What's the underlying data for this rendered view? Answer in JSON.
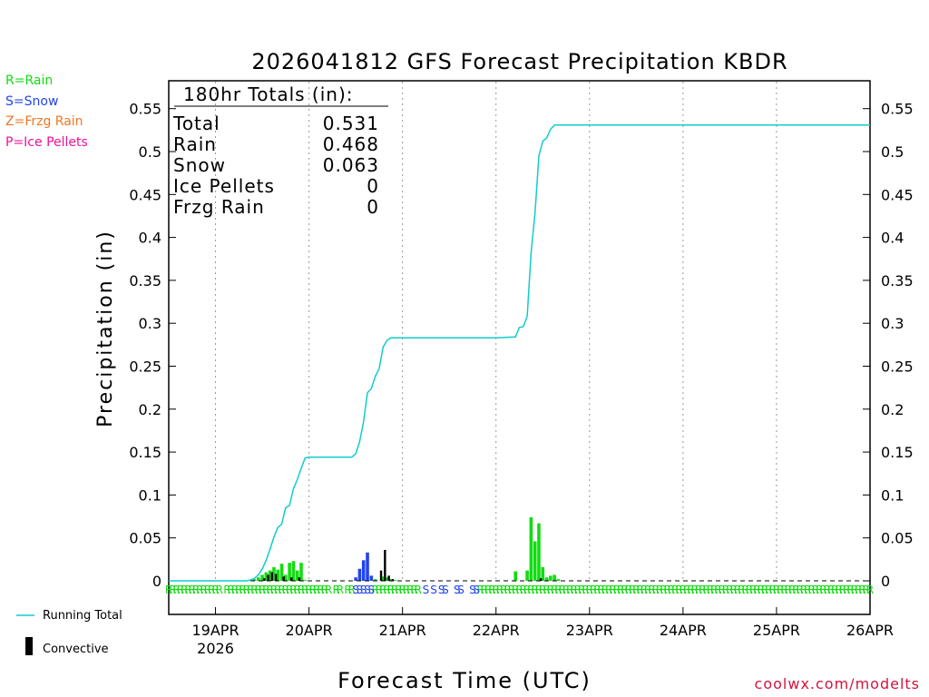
{
  "chart_data": {
    "type": "bar",
    "title": "2026041812 GFS Forecast Precipitation KBDR",
    "xlabel": "Forecast Time (UTC)",
    "ylabel": "Precipitation (in)",
    "ylim": [
      0,
      0.58
    ],
    "y_ticks": [
      0,
      0.05,
      0.1,
      0.15,
      0.2,
      0.25,
      0.3,
      0.35,
      0.4,
      0.45,
      0.5,
      0.55
    ],
    "y_tick_labels": [
      "0",
      "0.05",
      "0.1",
      "0.15",
      "0.2",
      "0.25",
      "0.3",
      "0.35",
      "0.4",
      "0.45",
      "0.5",
      "0.55"
    ],
    "x_range_hours": [
      0,
      180
    ],
    "x_ticks": [
      {
        "hour": 12,
        "label": "19APR",
        "sublabel": "2026"
      },
      {
        "hour": 36,
        "label": "20APR"
      },
      {
        "hour": 60,
        "label": "21APR"
      },
      {
        "hour": 84,
        "label": "22APR"
      },
      {
        "hour": 108,
        "label": "23APR"
      },
      {
        "hour": 132,
        "label": "24APR"
      },
      {
        "hour": 156,
        "label": "25APR"
      },
      {
        "hour": 180,
        "label": "26APR"
      }
    ],
    "grid": "vertical dotted at day boundaries",
    "totals": {
      "header": "180hr Totals (in):",
      "rows": [
        {
          "label": "Total",
          "value": "0.531"
        },
        {
          "label": "Rain",
          "value": "0.468"
        },
        {
          "label": "Snow",
          "value": "0.063"
        },
        {
          "label": "Ice Pellets",
          "value": "0"
        },
        {
          "label": "Frzg Rain",
          "value": "0"
        }
      ]
    },
    "series": [
      {
        "name": "Rain",
        "color": "#11dd11",
        "bars": [
          {
            "h": 22,
            "v": 0.002
          },
          {
            "h": 23,
            "v": 0.004
          },
          {
            "h": 24,
            "v": 0.007
          },
          {
            "h": 25,
            "v": 0.01
          },
          {
            "h": 26,
            "v": 0.012
          },
          {
            "h": 27,
            "v": 0.016
          },
          {
            "h": 28,
            "v": 0.013
          },
          {
            "h": 29,
            "v": 0.02
          },
          {
            "h": 30,
            "v": 0.007
          },
          {
            "h": 31,
            "v": 0.021
          },
          {
            "h": 32,
            "v": 0.023
          },
          {
            "h": 33,
            "v": 0.012
          },
          {
            "h": 34,
            "v": 0.021
          },
          {
            "h": 35,
            "v": 0.001
          },
          {
            "h": 53,
            "v": 0.002
          },
          {
            "h": 55,
            "v": 0.005
          },
          {
            "h": 56,
            "v": 0.004
          },
          {
            "h": 57,
            "v": 0.002
          },
          {
            "h": 58,
            "v": 0.001
          },
          {
            "h": 89,
            "v": 0.011
          },
          {
            "h": 92,
            "v": 0.012
          },
          {
            "h": 93,
            "v": 0.074
          },
          {
            "h": 94,
            "v": 0.046
          },
          {
            "h": 95,
            "v": 0.067
          },
          {
            "h": 96,
            "v": 0.016
          },
          {
            "h": 97,
            "v": 0.004
          },
          {
            "h": 98,
            "v": 0.006
          },
          {
            "h": 99,
            "v": 0.007
          },
          {
            "h": 100,
            "v": 0.002
          }
        ]
      },
      {
        "name": "Snow",
        "color": "#2244ee",
        "bars": [
          {
            "h": 48,
            "v": 0.004
          },
          {
            "h": 49,
            "v": 0.014
          },
          {
            "h": 50,
            "v": 0.024
          },
          {
            "h": 51,
            "v": 0.033
          },
          {
            "h": 52,
            "v": 0.006
          }
        ]
      },
      {
        "name": "Convective",
        "color": "#000000",
        "bars": [
          {
            "h": 24.5,
            "v": 0.003
          },
          {
            "h": 25.5,
            "v": 0.007
          },
          {
            "h": 26.5,
            "v": 0.01
          },
          {
            "h": 27.5,
            "v": 0.008
          },
          {
            "h": 29.5,
            "v": 0.005
          },
          {
            "h": 31.5,
            "v": 0.004
          },
          {
            "h": 33.5,
            "v": 0.004
          },
          {
            "h": 54.5,
            "v": 0.012
          },
          {
            "h": 55.5,
            "v": 0.036
          },
          {
            "h": 56.5,
            "v": 0.006
          },
          {
            "h": 57.5,
            "v": 0.002
          },
          {
            "h": 95.5,
            "v": 0.003
          }
        ]
      }
    ],
    "running_total": {
      "name": "Running Total",
      "color": "#11cccc",
      "points": [
        [
          0,
          0
        ],
        [
          20,
          0
        ],
        [
          21,
          0.001
        ],
        [
          22,
          0.003
        ],
        [
          23,
          0.007
        ],
        [
          24,
          0.014
        ],
        [
          25,
          0.024
        ],
        [
          26,
          0.037
        ],
        [
          27,
          0.051
        ],
        [
          28,
          0.062
        ],
        [
          29,
          0.066
        ],
        [
          30,
          0.085
        ],
        [
          31,
          0.088
        ],
        [
          32,
          0.107
        ],
        [
          33,
          0.118
        ],
        [
          34,
          0.131
        ],
        [
          35,
          0.143
        ],
        [
          36,
          0.144
        ],
        [
          47,
          0.144
        ],
        [
          48,
          0.148
        ],
        [
          49,
          0.162
        ],
        [
          50,
          0.185
        ],
        [
          51,
          0.219
        ],
        [
          52,
          0.224
        ],
        [
          53,
          0.238
        ],
        [
          54,
          0.247
        ],
        [
          55,
          0.272
        ],
        [
          56,
          0.28
        ],
        [
          57,
          0.283
        ],
        [
          84,
          0.283
        ],
        [
          89,
          0.284
        ],
        [
          90,
          0.295
        ],
        [
          91,
          0.296
        ],
        [
          92,
          0.308
        ],
        [
          93,
          0.382
        ],
        [
          94,
          0.428
        ],
        [
          95,
          0.495
        ],
        [
          96,
          0.512
        ],
        [
          97,
          0.516
        ],
        [
          98,
          0.526
        ],
        [
          99,
          0.531
        ],
        [
          180,
          0.531
        ]
      ]
    },
    "ptype_markers": {
      "rain_hours": [
        0,
        1,
        2,
        3,
        4,
        5,
        6,
        7,
        8,
        9,
        10,
        11,
        12,
        13,
        15,
        16,
        17,
        18,
        19,
        20,
        21,
        22,
        23,
        24,
        25,
        26,
        27,
        28,
        29,
        30,
        31,
        32,
        33,
        34,
        35,
        36,
        37,
        38,
        39,
        40,
        41,
        43,
        44,
        46,
        47,
        53,
        54,
        55,
        56,
        57,
        58,
        59,
        60,
        61,
        62,
        63,
        64,
        80,
        81,
        82,
        83,
        84,
        85,
        86,
        87,
        88,
        89,
        90,
        91,
        92,
        93,
        94,
        95,
        96,
        97,
        98,
        99,
        100,
        101,
        102,
        103,
        104,
        105,
        106,
        107,
        108,
        109,
        110,
        111,
        112,
        113,
        114,
        115,
        116,
        117,
        118,
        119,
        120,
        121,
        122,
        123,
        124,
        125,
        126,
        127,
        128,
        129,
        130,
        131,
        132,
        133,
        134,
        135,
        136,
        137,
        138,
        139,
        140,
        141,
        142,
        143,
        144,
        145,
        146,
        147,
        148,
        149,
        150,
        151,
        152,
        153,
        154,
        155,
        156,
        157,
        158,
        159,
        160,
        161,
        162,
        163,
        164,
        165,
        166,
        167,
        168,
        169,
        170,
        171,
        172,
        173,
        174,
        175,
        176,
        177,
        178,
        179,
        180
      ],
      "snow_hours": [
        48,
        49,
        50,
        51,
        52,
        66,
        68,
        70,
        71,
        74,
        75,
        78,
        79
      ]
    }
  },
  "precip_legend": [
    {
      "text": "R=Rain",
      "color": "#11dd11"
    },
    {
      "text": "S=Snow",
      "color": "#2244ee"
    },
    {
      "text": "Z=Frzg Rain",
      "color": "#ee7722"
    },
    {
      "text": "P=Ice Pellets",
      "color": "#ee1199"
    }
  ],
  "series_legend": {
    "running_total_label": "Running Total",
    "convective_label": "Convective"
  },
  "credit": "coolwx.com/modelts"
}
